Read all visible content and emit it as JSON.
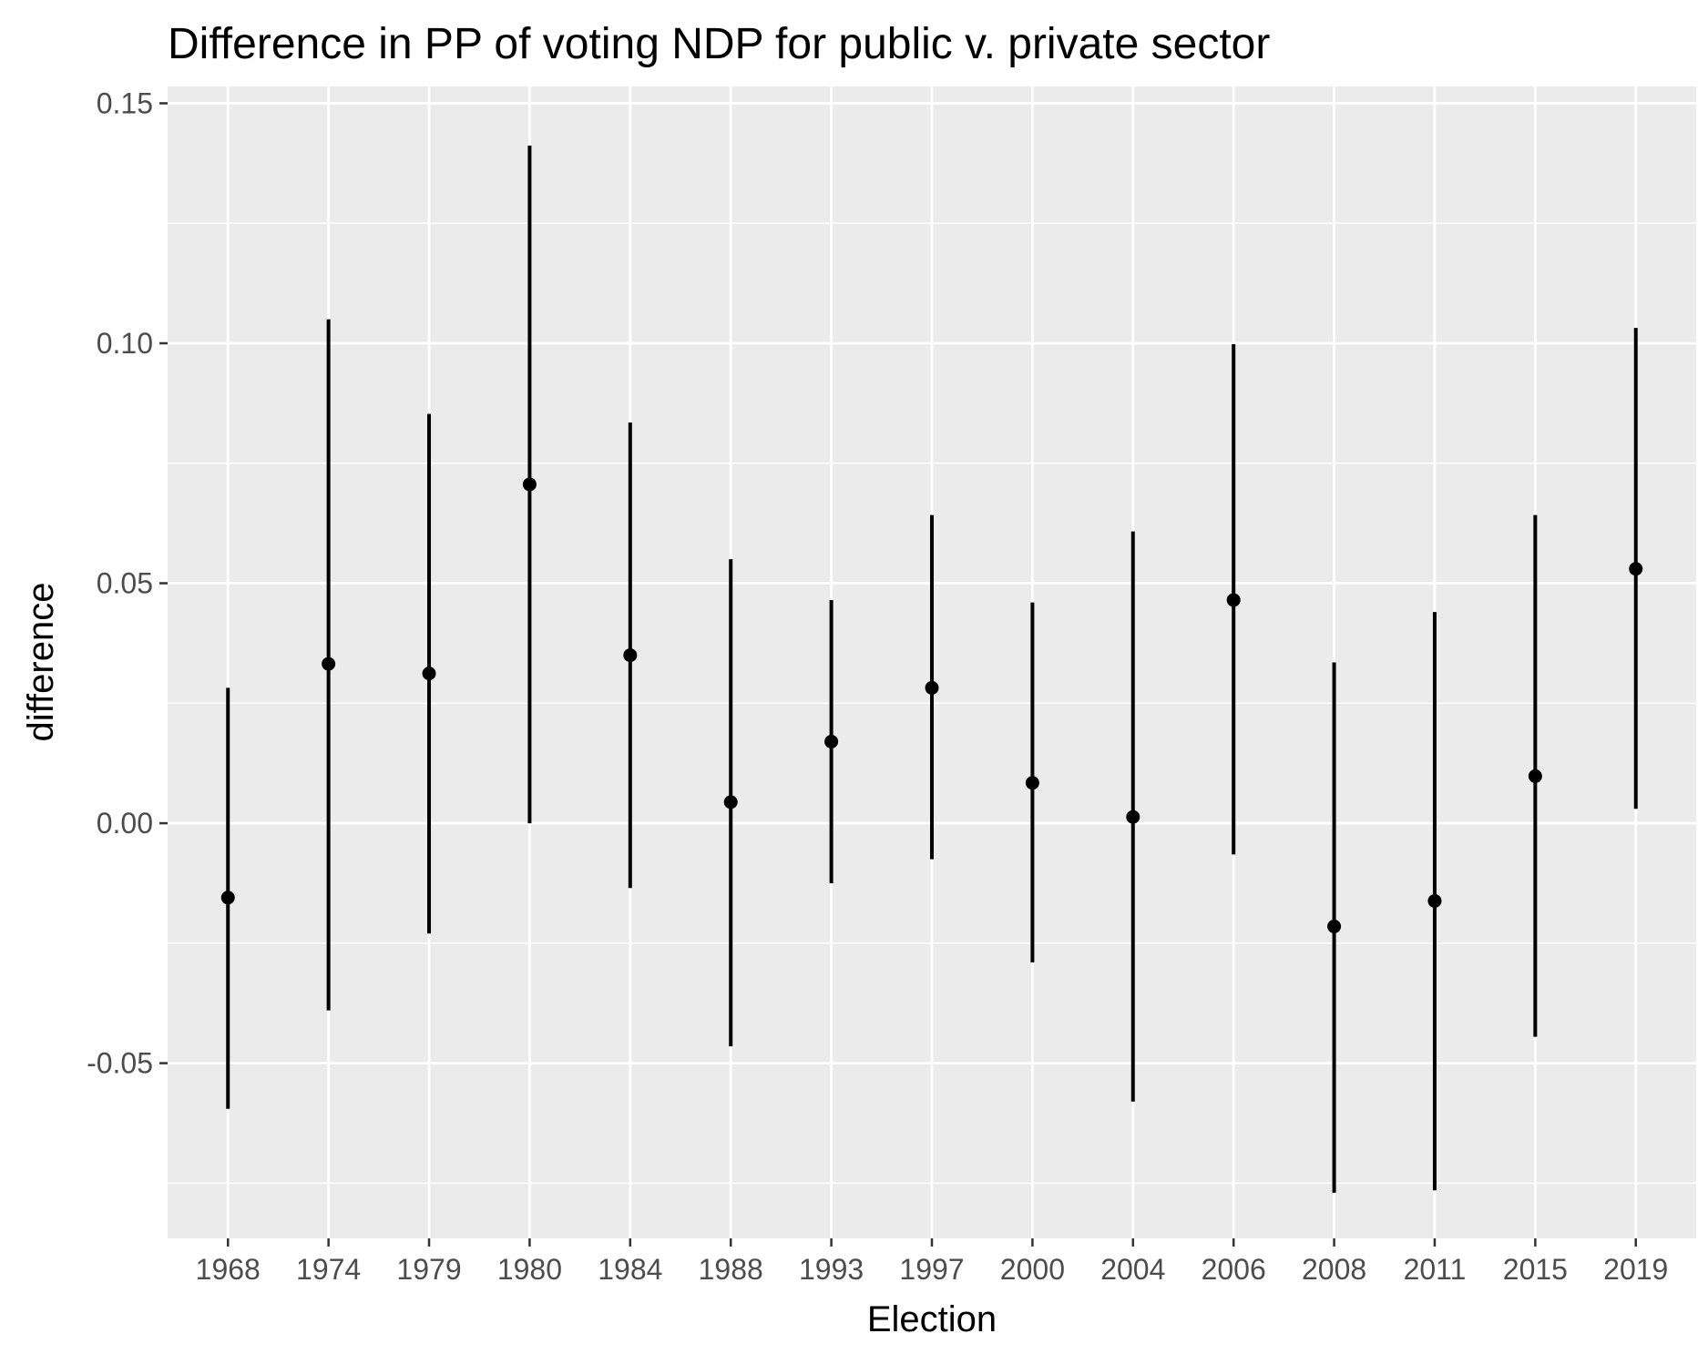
{
  "chart_data": {
    "type": "scatter",
    "title": "Difference in PP of voting NDP for public v. private sector",
    "xlabel": "Election",
    "ylabel": "difference",
    "categories": [
      "1968",
      "1974",
      "1979",
      "1980",
      "1984",
      "1988",
      "1993",
      "1997",
      "2000",
      "2004",
      "2006",
      "2008",
      "2011",
      "2015",
      "2019"
    ],
    "series": [
      {
        "values": [
          -0.0155,
          0.0332,
          0.0312,
          0.0706,
          0.035,
          0.0044,
          0.017,
          0.0282,
          0.0084,
          0.0013,
          0.0465,
          -0.0215,
          -0.0162,
          0.0098,
          0.053
        ],
        "lower": [
          -0.0595,
          -0.039,
          -0.023,
          0.0,
          -0.0135,
          -0.0465,
          -0.0125,
          -0.0075,
          -0.029,
          -0.058,
          -0.0065,
          -0.077,
          -0.0765,
          -0.0445,
          0.003
        ],
        "upper": [
          0.0282,
          0.105,
          0.0853,
          0.1412,
          0.0835,
          0.055,
          0.0465,
          0.0642,
          0.046,
          0.0608,
          0.0998,
          0.0335,
          0.044,
          0.0642,
          0.1032
        ]
      }
    ],
    "ylim": [
      -0.0865,
      0.1535
    ],
    "yticks": [
      -0.05,
      0.0,
      0.05,
      0.1,
      0.15
    ],
    "ytick_labels": [
      "-0.05",
      "0.00",
      "0.05",
      "0.10",
      "0.15"
    ],
    "grid": true,
    "legend": "none",
    "colors": {
      "panel": "#ebebeb",
      "grid": "#ffffff",
      "mark": "#000000",
      "tick_text": "#4d4d4d",
      "tick_line": "#333333"
    }
  }
}
